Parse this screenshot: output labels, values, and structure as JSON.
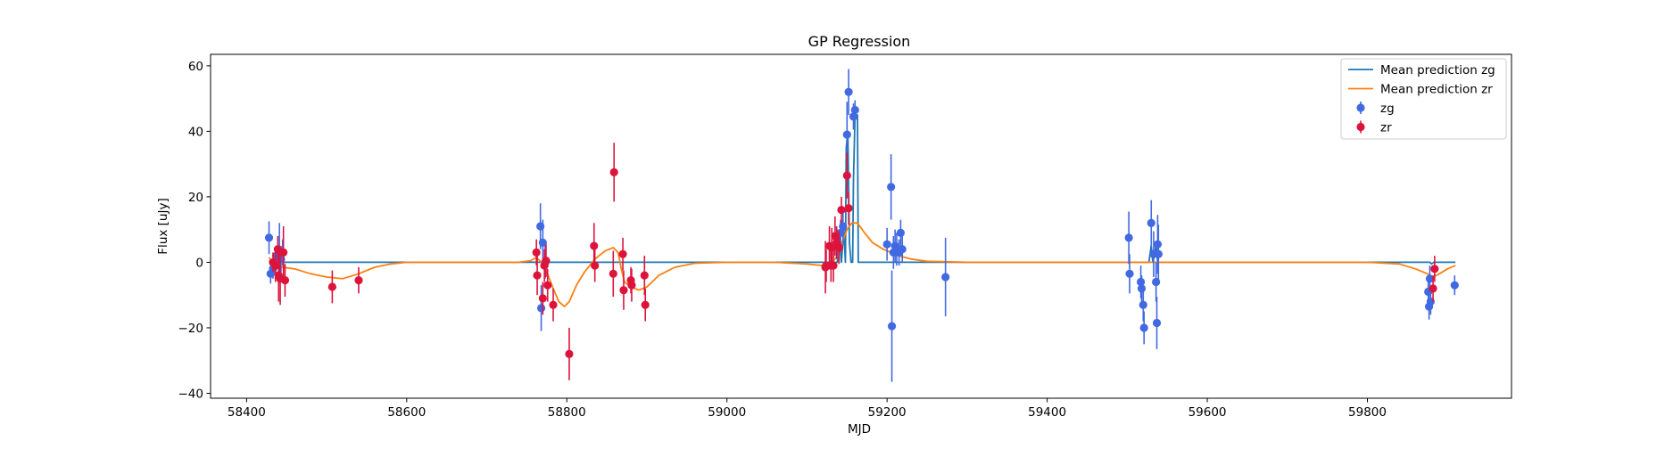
{
  "chart_data": {
    "type": "scatter",
    "title": "GP Regression",
    "xlabel": "MJD",
    "ylabel": "Flux [uJy]",
    "xlim": [
      58355,
      59980
    ],
    "ylim": [
      -41.5,
      63.5
    ],
    "xticks": [
      58400,
      58600,
      58800,
      59000,
      59200,
      59400,
      59600,
      59800
    ],
    "yticks": [
      -40,
      -20,
      0,
      20,
      40,
      60
    ],
    "grid": false,
    "legend_position": "top-right",
    "legend": [
      {
        "label": "Mean prediction zg",
        "kind": "line",
        "color": "#1f77b4"
      },
      {
        "label": "Mean prediction zr",
        "kind": "line",
        "color": "#ff7f0e"
      },
      {
        "label": "zg",
        "kind": "errorbar",
        "color": "#4169e1"
      },
      {
        "label": "zr",
        "kind": "errorbar",
        "color": "#dc143c"
      }
    ],
    "series": [
      {
        "name": "zg",
        "kind": "errorbar",
        "color": "#4169e1",
        "points": [
          {
            "x": 58428,
            "y": 7.5,
            "err": 5
          },
          {
            "x": 58430,
            "y": -3.5,
            "err": 3
          },
          {
            "x": 58433,
            "y": -2,
            "err": 3
          },
          {
            "x": 58437,
            "y": 2,
            "err": 3
          },
          {
            "x": 58441,
            "y": 3,
            "err": 9
          },
          {
            "x": 58443,
            "y": 1,
            "err": 4
          },
          {
            "x": 58445,
            "y": 3,
            "err": 4
          },
          {
            "x": 58767,
            "y": 11,
            "err": 7
          },
          {
            "x": 58768,
            "y": -14,
            "err": 7
          },
          {
            "x": 58770,
            "y": 6,
            "err": 7
          },
          {
            "x": 58773,
            "y": 0,
            "err": 5
          },
          {
            "x": 59138,
            "y": 6,
            "err": 4
          },
          {
            "x": 59142,
            "y": 9,
            "err": 4
          },
          {
            "x": 59145,
            "y": 11,
            "err": 5
          },
          {
            "x": 59150,
            "y": 39,
            "err": 10
          },
          {
            "x": 59152,
            "y": 52,
            "err": 7
          },
          {
            "x": 59158,
            "y": 44.5,
            "err": 4
          },
          {
            "x": 59160,
            "y": 46.5,
            "err": 3
          },
          {
            "x": 59200,
            "y": 5.5,
            "err": 5
          },
          {
            "x": 59205,
            "y": 23,
            "err": 10
          },
          {
            "x": 59206,
            "y": -19.5,
            "err": 17
          },
          {
            "x": 59208,
            "y": 3,
            "err": 5
          },
          {
            "x": 59210,
            "y": 5,
            "err": 5
          },
          {
            "x": 59212,
            "y": 4,
            "err": 5
          },
          {
            "x": 59215,
            "y": 3,
            "err": 4
          },
          {
            "x": 59217,
            "y": 9,
            "err": 4
          },
          {
            "x": 59219,
            "y": 4,
            "err": 4
          },
          {
            "x": 59273,
            "y": -4.5,
            "err": 12
          },
          {
            "x": 59502,
            "y": 7.5,
            "err": 8
          },
          {
            "x": 59503,
            "y": -3.5,
            "err": 6
          },
          {
            "x": 59517,
            "y": -6,
            "err": 5
          },
          {
            "x": 59518,
            "y": -8,
            "err": 4
          },
          {
            "x": 59520,
            "y": -13,
            "err": 5
          },
          {
            "x": 59521,
            "y": -20,
            "err": 5
          },
          {
            "x": 59530,
            "y": 12,
            "err": 7
          },
          {
            "x": 59533,
            "y": 2.5,
            "err": 7
          },
          {
            "x": 59536,
            "y": -6,
            "err": 6
          },
          {
            "x": 59537,
            "y": -18.5,
            "err": 8
          },
          {
            "x": 59538,
            "y": 5.5,
            "err": 9
          },
          {
            "x": 59539,
            "y": 2.5,
            "err": 9
          },
          {
            "x": 59876,
            "y": -9,
            "err": 4
          },
          {
            "x": 59877,
            "y": -13.5,
            "err": 4
          },
          {
            "x": 59878,
            "y": -5,
            "err": 4
          },
          {
            "x": 59879,
            "y": -12,
            "err": 4
          },
          {
            "x": 59909,
            "y": -7,
            "err": 3
          }
        ]
      },
      {
        "name": "zr",
        "kind": "errorbar",
        "color": "#dc143c",
        "points": [
          {
            "x": 58433,
            "y": 0,
            "err": 3
          },
          {
            "x": 58436,
            "y": -1,
            "err": 5
          },
          {
            "x": 58439,
            "y": 4,
            "err": 4
          },
          {
            "x": 58440,
            "y": -4,
            "err": 8
          },
          {
            "x": 58442,
            "y": -5,
            "err": 8
          },
          {
            "x": 58446,
            "y": 3,
            "err": 8
          },
          {
            "x": 58448,
            "y": -5.5,
            "err": 5
          },
          {
            "x": 58507,
            "y": -7.5,
            "err": 5
          },
          {
            "x": 58540,
            "y": -5.5,
            "err": 4
          },
          {
            "x": 58762,
            "y": 3,
            "err": 4
          },
          {
            "x": 58763,
            "y": -4,
            "err": 6
          },
          {
            "x": 58770,
            "y": -11,
            "err": 5
          },
          {
            "x": 58772,
            "y": -1,
            "err": 5
          },
          {
            "x": 58774,
            "y": 0.5,
            "err": 5
          },
          {
            "x": 58776,
            "y": -7,
            "err": 5
          },
          {
            "x": 58783,
            "y": -13,
            "err": 5
          },
          {
            "x": 58803,
            "y": -28,
            "err": 8
          },
          {
            "x": 58834,
            "y": 5,
            "err": 7
          },
          {
            "x": 58835,
            "y": -1,
            "err": 5
          },
          {
            "x": 58858,
            "y": -3.5,
            "err": 7
          },
          {
            "x": 58859,
            "y": 27.5,
            "err": 9
          },
          {
            "x": 58870,
            "y": 2.5,
            "err": 5
          },
          {
            "x": 58871,
            "y": -8.5,
            "err": 6
          },
          {
            "x": 58880,
            "y": -5.5,
            "err": 4
          },
          {
            "x": 58881,
            "y": -7,
            "err": 5
          },
          {
            "x": 58897,
            "y": -4,
            "err": 6
          },
          {
            "x": 58898,
            "y": -13,
            "err": 5
          },
          {
            "x": 59123,
            "y": -1.5,
            "err": 8
          },
          {
            "x": 59124,
            "y": -1,
            "err": 5
          },
          {
            "x": 59128,
            "y": 5,
            "err": 6
          },
          {
            "x": 59130,
            "y": -1,
            "err": 5
          },
          {
            "x": 59131,
            "y": 4.5,
            "err": 6
          },
          {
            "x": 59133,
            "y": -1,
            "err": 5
          },
          {
            "x": 59135,
            "y": 8,
            "err": 6
          },
          {
            "x": 59137,
            "y": 6,
            "err": 5
          },
          {
            "x": 59140,
            "y": 4.5,
            "err": 5
          },
          {
            "x": 59143,
            "y": 16,
            "err": 4
          },
          {
            "x": 59150,
            "y": 26.5,
            "err": 7
          },
          {
            "x": 59152,
            "y": 16.5,
            "err": 5
          },
          {
            "x": 59882,
            "y": -8,
            "err": 4
          },
          {
            "x": 59884,
            "y": -2,
            "err": 4
          }
        ]
      },
      {
        "name": "Mean prediction zg",
        "kind": "line",
        "color": "#1f77b4",
        "points": [
          {
            "x": 58428,
            "y": 0.3
          },
          {
            "x": 58431,
            "y": 0
          },
          {
            "x": 58436,
            "y": 0
          },
          {
            "x": 58439,
            "y": 3
          },
          {
            "x": 58443,
            "y": 0
          },
          {
            "x": 59125,
            "y": 0
          },
          {
            "x": 59138,
            "y": 0
          },
          {
            "x": 59140,
            "y": 9
          },
          {
            "x": 59143,
            "y": 0
          },
          {
            "x": 59146,
            "y": 10
          },
          {
            "x": 59148,
            "y": 0
          },
          {
            "x": 59149,
            "y": 35
          },
          {
            "x": 59151,
            "y": 40
          },
          {
            "x": 59153,
            "y": 6
          },
          {
            "x": 59155,
            "y": 0
          },
          {
            "x": 59157,
            "y": 0
          },
          {
            "x": 59158,
            "y": 25
          },
          {
            "x": 59160,
            "y": 45
          },
          {
            "x": 59163,
            "y": 45
          },
          {
            "x": 59164,
            "y": 0
          },
          {
            "x": 59527,
            "y": 0
          },
          {
            "x": 59530,
            "y": 5
          },
          {
            "x": 59532,
            "y": 0
          },
          {
            "x": 59536,
            "y": 5
          },
          {
            "x": 59538,
            "y": 0
          },
          {
            "x": 59878,
            "y": 0
          },
          {
            "x": 59880,
            "y": -0.5
          },
          {
            "x": 59883,
            "y": 0
          },
          {
            "x": 59910,
            "y": 0
          }
        ]
      },
      {
        "name": "Mean prediction zr",
        "kind": "line",
        "color": "#ff7f0e",
        "points": [
          {
            "x": 58428,
            "y": 1.5
          },
          {
            "x": 58436,
            "y": -1
          },
          {
            "x": 58445,
            "y": -1.5
          },
          {
            "x": 58460,
            "y": -2
          },
          {
            "x": 58480,
            "y": -3.5
          },
          {
            "x": 58500,
            "y": -4.5
          },
          {
            "x": 58520,
            "y": -5
          },
          {
            "x": 58540,
            "y": -3.5
          },
          {
            "x": 58560,
            "y": -1.5
          },
          {
            "x": 58580,
            "y": -0.5
          },
          {
            "x": 58600,
            "y": 0
          },
          {
            "x": 58700,
            "y": 0
          },
          {
            "x": 58740,
            "y": 0
          },
          {
            "x": 58755,
            "y": 0.5
          },
          {
            "x": 58762,
            "y": 1.5
          },
          {
            "x": 58768,
            "y": 0
          },
          {
            "x": 58775,
            "y": -3
          },
          {
            "x": 58783,
            "y": -8
          },
          {
            "x": 58790,
            "y": -12
          },
          {
            "x": 58797,
            "y": -13.5
          },
          {
            "x": 58803,
            "y": -12
          },
          {
            "x": 58812,
            "y": -7
          },
          {
            "x": 58822,
            "y": -3
          },
          {
            "x": 58835,
            "y": 1
          },
          {
            "x": 58848,
            "y": 3.5
          },
          {
            "x": 58858,
            "y": 4.5
          },
          {
            "x": 58864,
            "y": 3
          },
          {
            "x": 58868,
            "y": -2
          },
          {
            "x": 58872,
            "y": -6
          },
          {
            "x": 58880,
            "y": -7.5
          },
          {
            "x": 58890,
            "y": -8.5
          },
          {
            "x": 58900,
            "y": -7.5
          },
          {
            "x": 58915,
            "y": -4
          },
          {
            "x": 58935,
            "y": -1.5
          },
          {
            "x": 58960,
            "y": -0.3
          },
          {
            "x": 59000,
            "y": 0
          },
          {
            "x": 59060,
            "y": 0
          },
          {
            "x": 59100,
            "y": -0.5
          },
          {
            "x": 59120,
            "y": -1
          },
          {
            "x": 59130,
            "y": -0.5
          },
          {
            "x": 59138,
            "y": 2
          },
          {
            "x": 59144,
            "y": 6
          },
          {
            "x": 59150,
            "y": 10
          },
          {
            "x": 59156,
            "y": 12
          },
          {
            "x": 59163,
            "y": 12
          },
          {
            "x": 59172,
            "y": 9
          },
          {
            "x": 59182,
            "y": 6
          },
          {
            "x": 59195,
            "y": 4
          },
          {
            "x": 59205,
            "y": 3
          },
          {
            "x": 59215,
            "y": 2
          },
          {
            "x": 59230,
            "y": 1
          },
          {
            "x": 59250,
            "y": 0.3
          },
          {
            "x": 59300,
            "y": 0
          },
          {
            "x": 59800,
            "y": 0
          },
          {
            "x": 59840,
            "y": -0.5
          },
          {
            "x": 59860,
            "y": -2
          },
          {
            "x": 59875,
            "y": -3.5
          },
          {
            "x": 59882,
            "y": -4.5
          },
          {
            "x": 59890,
            "y": -3.5
          },
          {
            "x": 59900,
            "y": -2
          },
          {
            "x": 59910,
            "y": -1
          }
        ]
      }
    ]
  }
}
